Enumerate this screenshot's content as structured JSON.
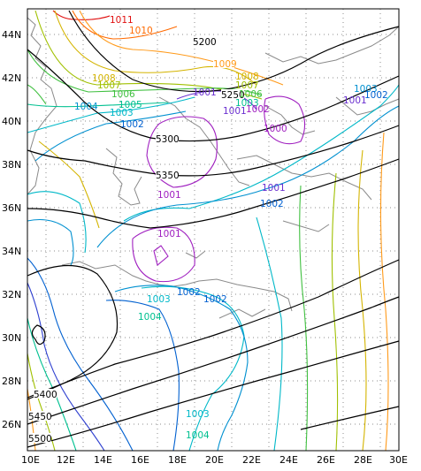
{
  "axes": {
    "lon_labels": [
      "10E",
      "12E",
      "14E",
      "16E",
      "18E",
      "20E",
      "22E",
      "24E",
      "26E",
      "28E",
      "30E"
    ],
    "lat_labels": [
      "26N",
      "28N",
      "30N",
      "32N",
      "34N",
      "36N",
      "38N",
      "40N",
      "42N",
      "44N"
    ]
  },
  "colors": {
    "geopotential": "#000000",
    "coast": "#8a8a8a",
    "p996": "#e01010",
    "p997": "#ff6a00",
    "p998": "#ff9a1a",
    "p999": "#d4b400",
    "p1000": "#a0c000",
    "p1001": "#40c040",
    "p1002": "#00c090",
    "p1003": "#00b8c8",
    "p1004": "#0090d0",
    "p1005": "#0060d0",
    "p1006": "#2f40d0",
    "p1007": "#6a2fd0",
    "p1008": "#a020c0"
  },
  "labels": {
    "gh5200": "5200",
    "gh5250": "5250",
    "gh5300": "5300",
    "gh5350": "5350",
    "gh5400": "5400",
    "gh5450": "5450",
    "gh5500": "5500",
    "p1011": "1011",
    "p1010": "1010",
    "p1009": "1009",
    "p1008": "1008",
    "p1007": "1007",
    "p1006": "1006",
    "p1005": "1005",
    "p1004": "1004",
    "p1003": "1003",
    "p1002": "1002",
    "p1001": "1001",
    "p1000": "1000"
  }
}
